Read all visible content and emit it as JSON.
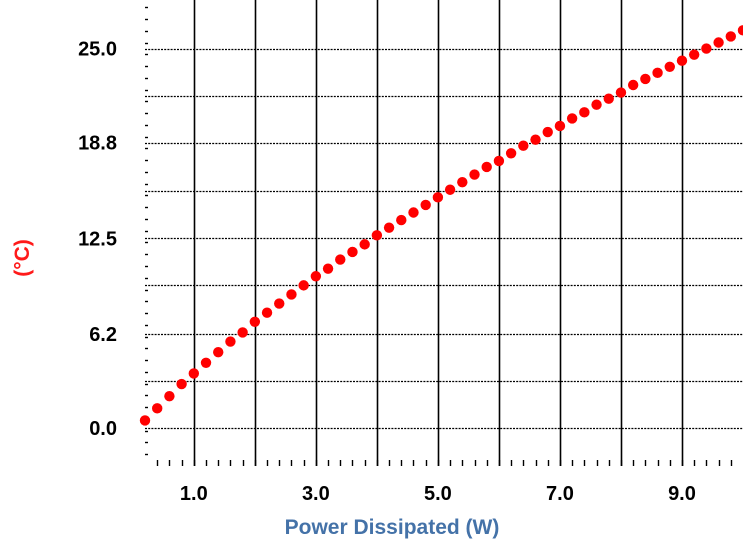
{
  "chart_data": {
    "type": "scatter",
    "title": "",
    "xlabel": "Power Dissipated (W)",
    "ylabel": "(°C)",
    "xlim": [
      0.2,
      10.0
    ],
    "ylim": [
      -2.5,
      28.2
    ],
    "x_ticks": [
      "1.0",
      "3.0",
      "5.0",
      "7.0",
      "9.0"
    ],
    "x_tick_values": [
      1.0,
      3.0,
      5.0,
      7.0,
      9.0
    ],
    "y_ticks": [
      "0.0",
      "6.2",
      "12.5",
      "18.8",
      "25.0"
    ],
    "y_tick_values": [
      0.0,
      6.2,
      12.5,
      18.8,
      25.0
    ],
    "x_gridlines": [
      1.0,
      2.0,
      3.0,
      4.0,
      5.0,
      6.0,
      7.0,
      8.0,
      9.0
    ],
    "y_gridlines": [
      0.0,
      3.1,
      6.2,
      9.4,
      12.5,
      15.6,
      18.8,
      21.9,
      25.0
    ],
    "grid": true,
    "colors": {
      "series": "#ff0000",
      "ylabel": "#ff1a1a",
      "xlabel": "#4472a8",
      "grid": "#000000"
    },
    "series": [
      {
        "x": [
          0.2,
          0.4,
          0.6,
          0.8,
          1.0,
          1.2,
          1.4,
          1.6,
          1.8,
          2.0,
          2.2,
          2.4,
          2.6,
          2.8,
          3.0,
          3.2,
          3.4,
          3.6,
          3.8,
          4.0,
          4.2,
          4.4,
          4.6,
          4.8,
          5.0,
          5.2,
          5.4,
          5.6,
          5.8,
          6.0,
          6.2,
          6.4,
          6.6,
          6.8,
          7.0,
          7.2,
          7.4,
          7.6,
          7.8,
          8.0,
          8.2,
          8.4,
          8.6,
          8.8,
          9.0,
          9.2,
          9.4,
          9.6,
          9.8,
          10.0
        ],
        "y": [
          0.5,
          1.3,
          2.1,
          2.9,
          3.6,
          4.3,
          5.0,
          5.7,
          6.3,
          7.0,
          7.6,
          8.2,
          8.8,
          9.4,
          10.0,
          10.5,
          11.1,
          11.6,
          12.1,
          12.7,
          13.2,
          13.7,
          14.2,
          14.7,
          15.2,
          15.7,
          16.2,
          16.7,
          17.2,
          17.6,
          18.1,
          18.6,
          19.0,
          19.5,
          19.9,
          20.4,
          20.8,
          21.3,
          21.7,
          22.1,
          22.6,
          23.0,
          23.4,
          23.8,
          24.2,
          24.6,
          25.0,
          25.4,
          25.8,
          26.2
        ]
      }
    ]
  }
}
